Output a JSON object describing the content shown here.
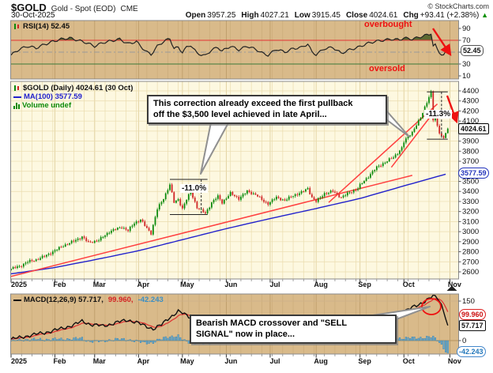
{
  "header": {
    "symbol": "$GOLD",
    "name": "Gold - Spot (EOD)",
    "exchange": "CME",
    "credit": "© StockCharts.com",
    "date": "30-Oct-2025",
    "quote": [
      {
        "label": "Open",
        "value": "3957.25"
      },
      {
        "label": "High",
        "value": "4027.21"
      },
      {
        "label": "Low",
        "value": "3915.45"
      },
      {
        "label": "Close",
        "value": "4024.61"
      },
      {
        "label": "Chg",
        "value": "+93.41 (+2.38%)"
      }
    ],
    "chg_arrow": "▲"
  },
  "rsi_panel": {
    "label": "RSI(14) 52.45",
    "overbought_label": "overbought",
    "oversold_label": "oversold",
    "value_label": "52.45",
    "axis_ticks": [
      90,
      70,
      50,
      30,
      10
    ],
    "levels": {
      "overbought": 70,
      "mid": 50,
      "oversold": 30
    }
  },
  "main_panel": {
    "title": "$GOLD (Daily) 4024.61 (30 Oct)",
    "ma_label": "MA(100) 3577.59",
    "volume_label": "Volume undef",
    "price_value_label": "4024.61",
    "ma_value_label": "3577.59",
    "axis_min": 2600,
    "axis_max": 4400,
    "axis_step": 100,
    "annotation": {
      "line1": "This correction already exceed the first pullback",
      "line2": "off the $3,500 level achieved in late April..."
    },
    "pullback_april_label": "-11.0%",
    "pullback_oct_label": "-11.3%"
  },
  "macd_panel": {
    "label_macd": "MACD(12,26,9) 57.717,",
    "label_signal": "99.960,",
    "label_hist": "-42.243",
    "axis_ticks": [
      150,
      0
    ],
    "value_labels": {
      "signal": "99.960",
      "macd": "57.717",
      "hist": "-42.243"
    },
    "annotation": {
      "line1": "Bearish MACD crossover and \"SELL",
      "line2": "SIGNAL\" now in place..."
    }
  },
  "x_axis": {
    "labels": [
      "2025",
      "Feb",
      "Mar",
      "Apr",
      "May",
      "Jun",
      "Jul",
      "Aug",
      "Sep",
      "Oct",
      "Nov"
    ],
    "month_days": [
      0,
      21,
      40,
      61,
      82,
      103,
      124,
      146,
      167,
      188,
      210
    ],
    "total_days": 214,
    "n_candles": 210
  },
  "colors": {
    "candle_up": "#0c8a0c",
    "candle_down": "#cf2525",
    "ma": "#2222cc",
    "trend": "#ff4040",
    "macd_line": "#111111",
    "signal": "#e03030",
    "hist_fill": "#66a8cc",
    "hist_stroke": "#3a7fa8",
    "panel_tan": "#d9ba8a",
    "panel_grid": "#c8a877",
    "main_bg": "#fdf8e0",
    "main_grid": "#eadcae",
    "rsi_line": "#222222",
    "rsi_fill": "#4f6228",
    "overbought_line": "#e23333",
    "oversold_line": "#3a7a3a",
    "mid_line": "#999999",
    "annotation_red": "#ee1111"
  },
  "chart_data": [
    {
      "type": "line",
      "title": "RSI(14)",
      "ylim": [
        10,
        90
      ],
      "levels": [
        70,
        50,
        30
      ],
      "last_value": 52.45,
      "anchors": [
        [
          0,
          45
        ],
        [
          4,
          55
        ],
        [
          8,
          60
        ],
        [
          12,
          57
        ],
        [
          16,
          63
        ],
        [
          20,
          68
        ],
        [
          24,
          72
        ],
        [
          28,
          74
        ],
        [
          32,
          70
        ],
        [
          36,
          66
        ],
        [
          40,
          60
        ],
        [
          44,
          66
        ],
        [
          48,
          69
        ],
        [
          52,
          72
        ],
        [
          56,
          64
        ],
        [
          60,
          68
        ],
        [
          62,
          60
        ],
        [
          65,
          50
        ],
        [
          67,
          46
        ],
        [
          70,
          60
        ],
        [
          73,
          68
        ],
        [
          76,
          73
        ],
        [
          78,
          56
        ],
        [
          80,
          58
        ],
        [
          82,
          50
        ],
        [
          84,
          58
        ],
        [
          86,
          62
        ],
        [
          89,
          48
        ],
        [
          93,
          44
        ],
        [
          96,
          54
        ],
        [
          99,
          58
        ],
        [
          101,
          52
        ],
        [
          105,
          60
        ],
        [
          109,
          54
        ],
        [
          113,
          60
        ],
        [
          117,
          55
        ],
        [
          121,
          47
        ],
        [
          123,
          45
        ],
        [
          127,
          55
        ],
        [
          131,
          50
        ],
        [
          135,
          56
        ],
        [
          139,
          58
        ],
        [
          142,
          64
        ],
        [
          144,
          50
        ],
        [
          146,
          46
        ],
        [
          150,
          56
        ],
        [
          154,
          58
        ],
        [
          158,
          48
        ],
        [
          162,
          54
        ],
        [
          166,
          58
        ],
        [
          170,
          64
        ],
        [
          174,
          68
        ],
        [
          178,
          70
        ],
        [
          182,
          72
        ],
        [
          186,
          71
        ],
        [
          188,
          74
        ],
        [
          192,
          72
        ],
        [
          194,
          74
        ],
        [
          196,
          76
        ],
        [
          198,
          78
        ],
        [
          200,
          80
        ],
        [
          201,
          82
        ],
        [
          202,
          60
        ],
        [
          203,
          62
        ],
        [
          204,
          55
        ],
        [
          205,
          50
        ],
        [
          206,
          46
        ],
        [
          207,
          44
        ],
        [
          208,
          50
        ],
        [
          209,
          52.45
        ]
      ]
    },
    {
      "type": "candlestick",
      "title": "$GOLD Daily close",
      "ylim": [
        2600,
        4400
      ],
      "last_close": 4024.61,
      "close_anchors": [
        [
          0,
          2630
        ],
        [
          4,
          2655
        ],
        [
          8,
          2700
        ],
        [
          12,
          2720
        ],
        [
          16,
          2755
        ],
        [
          20,
          2800
        ],
        [
          25,
          2860
        ],
        [
          30,
          2905
        ],
        [
          34,
          2950
        ],
        [
          37,
          2890
        ],
        [
          42,
          2915
        ],
        [
          47,
          3000
        ],
        [
          53,
          3045
        ],
        [
          56,
          3010
        ],
        [
          59,
          3085
        ],
        [
          62,
          3120
        ],
        [
          65,
          3030
        ],
        [
          67,
          2985
        ],
        [
          70,
          3225
        ],
        [
          73,
          3330
        ],
        [
          76,
          3470
        ],
        [
          78,
          3290
        ],
        [
          80,
          3320
        ],
        [
          82,
          3230
        ],
        [
          84,
          3320
        ],
        [
          86,
          3400
        ],
        [
          89,
          3240
        ],
        [
          93,
          3180
        ],
        [
          96,
          3290
        ],
        [
          99,
          3350
        ],
        [
          101,
          3290
        ],
        [
          105,
          3380
        ],
        [
          109,
          3330
        ],
        [
          113,
          3400
        ],
        [
          117,
          3370
        ],
        [
          121,
          3300
        ],
        [
          123,
          3280
        ],
        [
          127,
          3340
        ],
        [
          131,
          3310
        ],
        [
          135,
          3360
        ],
        [
          139,
          3390
        ],
        [
          142,
          3430
        ],
        [
          144,
          3340
        ],
        [
          146,
          3300
        ],
        [
          150,
          3380
        ],
        [
          154,
          3400
        ],
        [
          158,
          3340
        ],
        [
          162,
          3390
        ],
        [
          166,
          3430
        ],
        [
          167,
          3460
        ],
        [
          171,
          3550
        ],
        [
          175,
          3640
        ],
        [
          179,
          3690
        ],
        [
          183,
          3740
        ],
        [
          187,
          3830
        ],
        [
          188,
          3890
        ],
        [
          190,
          3950
        ],
        [
          192,
          3990
        ],
        [
          194,
          4060
        ],
        [
          196,
          4130
        ],
        [
          198,
          4240
        ],
        [
          200,
          4340
        ],
        [
          201,
          4385
        ],
        [
          202,
          4110
        ],
        [
          203,
          4120
        ],
        [
          204,
          4050
        ],
        [
          205,
          3990
        ],
        [
          206,
          3950
        ],
        [
          207,
          3930
        ],
        [
          208,
          3985
        ],
        [
          209,
          4024.61
        ]
      ],
      "ma100_anchors": [
        [
          0,
          2580
        ],
        [
          20,
          2640
        ],
        [
          40,
          2720
        ],
        [
          61,
          2810
        ],
        [
          82,
          2920
        ],
        [
          103,
          3030
        ],
        [
          124,
          3130
        ],
        [
          146,
          3230
        ],
        [
          167,
          3330
        ],
        [
          188,
          3455
        ],
        [
          209,
          3577.59
        ]
      ],
      "trendlines": [
        [
          [
            0,
            2555
          ],
          [
            192,
            3560
          ]
        ],
        [
          [
            152,
            3290
          ],
          [
            204,
            4270
          ]
        ],
        [
          [
            182,
            3640
          ],
          [
            202,
            4180
          ]
        ]
      ],
      "april_bracket": {
        "x_day": 91,
        "x_from": 76,
        "x_to": 94,
        "top": 3520,
        "bottom": 3170
      },
      "oct_bracket": {
        "x_day": 206,
        "x_from": 199,
        "x_to": 209,
        "top": 4390,
        "bottom": 3920
      }
    },
    {
      "type": "line+histogram",
      "title": "MACD(12,26,9)",
      "ylim": [
        -60,
        180
      ],
      "last_macd": 57.717,
      "last_signal": 99.96,
      "last_hist": -42.243,
      "macd_anchors": [
        [
          0,
          5
        ],
        [
          8,
          18
        ],
        [
          16,
          30
        ],
        [
          24,
          45
        ],
        [
          30,
          60
        ],
        [
          34,
          73
        ],
        [
          38,
          62
        ],
        [
          44,
          55
        ],
        [
          50,
          68
        ],
        [
          56,
          78
        ],
        [
          60,
          70
        ],
        [
          64,
          55
        ],
        [
          68,
          45
        ],
        [
          72,
          60
        ],
        [
          76,
          88
        ],
        [
          80,
          112
        ],
        [
          84,
          95
        ],
        [
          88,
          80
        ],
        [
          93,
          58
        ],
        [
          98,
          55
        ],
        [
          101,
          62
        ],
        [
          105,
          70
        ],
        [
          109,
          74
        ],
        [
          113,
          72
        ],
        [
          117,
          66
        ],
        [
          121,
          55
        ],
        [
          124,
          48
        ],
        [
          128,
          50
        ],
        [
          132,
          52
        ],
        [
          136,
          56
        ],
        [
          140,
          62
        ],
        [
          143,
          66
        ],
        [
          146,
          58
        ],
        [
          150,
          48
        ],
        [
          154,
          44
        ],
        [
          158,
          40
        ],
        [
          162,
          42
        ],
        [
          166,
          45
        ],
        [
          170,
          55
        ],
        [
          174,
          68
        ],
        [
          178,
          80
        ],
        [
          182,
          92
        ],
        [
          186,
          105
        ],
        [
          190,
          118
        ],
        [
          194,
          132
        ],
        [
          198,
          150
        ],
        [
          200,
          160
        ],
        [
          202,
          168
        ],
        [
          204,
          162
        ],
        [
          205,
          150
        ],
        [
          206,
          135
        ],
        [
          207,
          115
        ],
        [
          208,
          88
        ],
        [
          209,
          57.717
        ]
      ]
    }
  ]
}
